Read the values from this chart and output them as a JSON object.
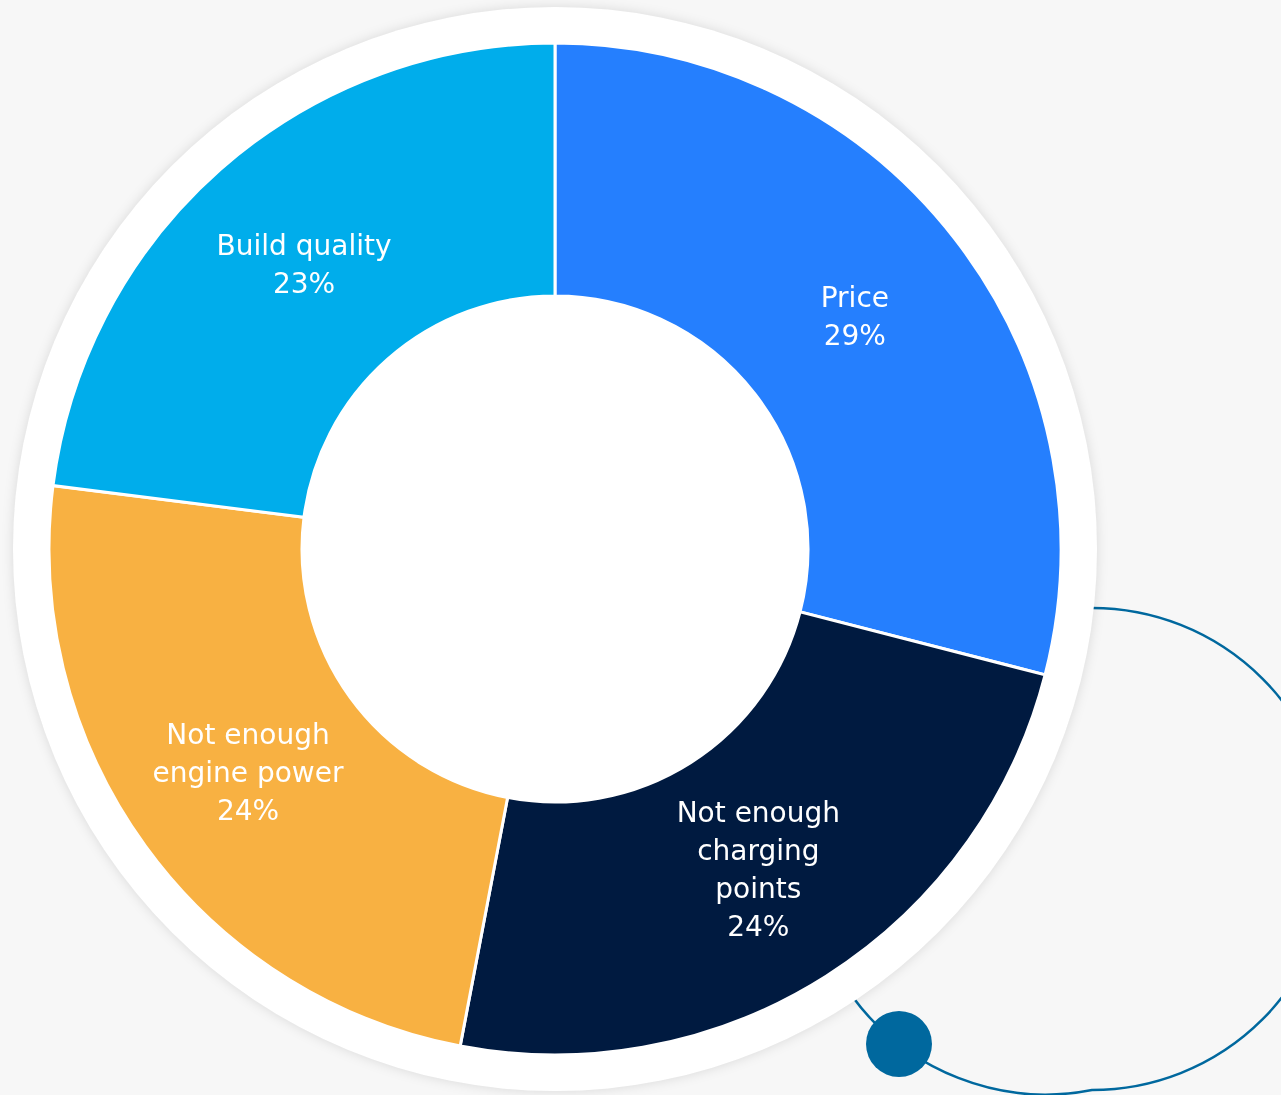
{
  "chart_data": {
    "type": "donut",
    "categories": [
      "Price",
      "Not enough charging points",
      "Not enough engine power",
      "Build quality"
    ],
    "values": [
      29,
      24,
      24,
      23
    ],
    "colors": [
      "#257ffe",
      "#001a40",
      "#f8b142",
      "#00adeb"
    ],
    "value_labels": [
      "29%",
      "24%",
      "24%",
      "23%"
    ]
  }
}
